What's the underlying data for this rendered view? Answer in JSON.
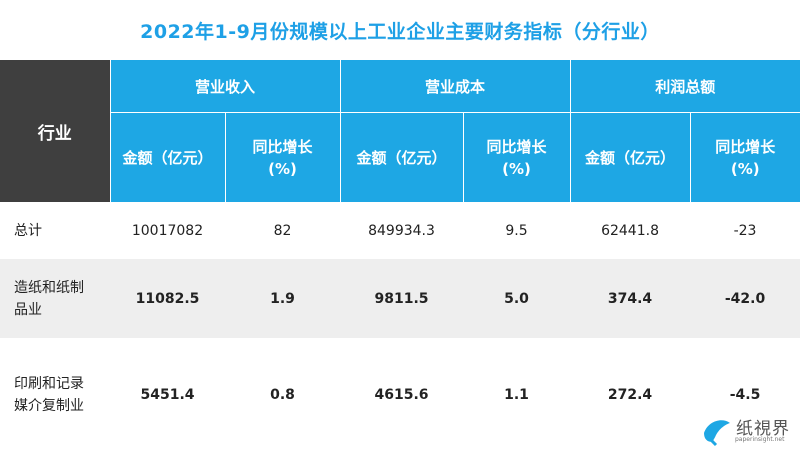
{
  "title": "2022年1-9月份规模以上工业企业主要财务指标（分行业）",
  "header": {
    "industry": "行业",
    "groups": [
      "营业收入",
      "营业成本",
      "利润总额"
    ],
    "amount": "金额（亿元）",
    "growth_line1": "同比增长",
    "growth_line2": "(%)"
  },
  "rows": [
    {
      "name": [
        "总计",
        ""
      ],
      "rev": "10017082",
      "rev_g": "82",
      "cost": "849934.3",
      "cost_g": "9.5",
      "profit": "62441.8",
      "profit_g": "-23"
    },
    {
      "name": [
        "造纸和纸制",
        "品业"
      ],
      "rev": "11082.5",
      "rev_g": "1.9",
      "cost": "9811.5",
      "cost_g": "5.0",
      "profit": "374.4",
      "profit_g": "-42.0"
    },
    {
      "name": [
        "印刷和记录",
        "媒介复制业"
      ],
      "rev": "5451.4",
      "rev_g": "0.8",
      "cost": "4615.6",
      "cost_g": "1.1",
      "profit": "272.4",
      "profit_g": "-4.5"
    }
  ],
  "watermark": {
    "brand": "纸視界",
    "url": "paperinsight.net",
    "color": "#1ea7e4"
  }
}
